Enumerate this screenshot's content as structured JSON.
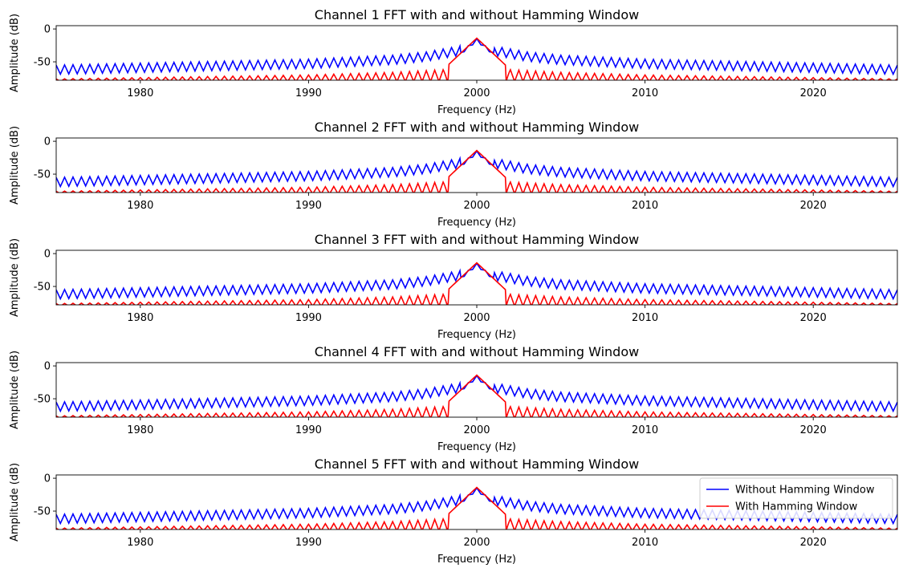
{
  "chart_data": [
    {
      "type": "line",
      "title": "Channel 1 FFT with and without Hamming Window",
      "xlabel": "Frequency (Hz)",
      "ylabel": "Amplitude (dB)",
      "xlim": [
        1975,
        2025
      ],
      "ylim": [
        -78,
        5
      ],
      "xticks": [
        1980,
        1990,
        2000,
        2010,
        2020
      ],
      "yticks": [
        0,
        -50
      ],
      "grid": false,
      "legend": null,
      "series": [
        {
          "name": "Without Hamming Window",
          "color": "#0000ff",
          "x": [
            1975,
            1980,
            1985,
            1990,
            1995,
            1997,
            1999,
            2000,
            2001,
            2003,
            2005,
            2010,
            2015,
            2020,
            2025
          ],
          "y": [
            -62,
            -59,
            -56,
            -53,
            -47,
            -42,
            -33,
            -12,
            -33,
            -42,
            -47,
            -53,
            -56,
            -59,
            -62
          ]
        },
        {
          "name": "With Hamming Window",
          "color": "#ff0000",
          "x": [
            1975,
            1980,
            1985,
            1990,
            1995,
            1998,
            1999,
            2000,
            2001,
            2002,
            2005,
            2010,
            2015,
            2020,
            2025
          ],
          "y": [
            -76,
            -74,
            -72,
            -70,
            -66,
            -62,
            -38,
            -14,
            -38,
            -62,
            -66,
            -70,
            -72,
            -74,
            -76
          ]
        }
      ]
    },
    {
      "type": "line",
      "title": "Channel 2 FFT with and without Hamming Window",
      "xlabel": "Frequency (Hz)",
      "ylabel": "Amplitude (dB)",
      "xlim": [
        1975,
        2025
      ],
      "ylim": [
        -78,
        5
      ],
      "xticks": [
        1980,
        1990,
        2000,
        2010,
        2020
      ],
      "yticks": [
        0,
        -50
      ],
      "grid": false,
      "legend": null,
      "series": [
        {
          "name": "Without Hamming Window",
          "color": "#0000ff",
          "x": [
            1975,
            1980,
            1985,
            1990,
            1995,
            1997,
            1999,
            2000,
            2001,
            2003,
            2005,
            2010,
            2015,
            2020,
            2025
          ],
          "y": [
            -62,
            -59,
            -56,
            -53,
            -47,
            -42,
            -33,
            -12,
            -33,
            -42,
            -47,
            -53,
            -56,
            -59,
            -62
          ]
        },
        {
          "name": "With Hamming Window",
          "color": "#ff0000",
          "x": [
            1975,
            1980,
            1985,
            1990,
            1995,
            1998,
            1999,
            2000,
            2001,
            2002,
            2005,
            2010,
            2015,
            2020,
            2025
          ],
          "y": [
            -76,
            -74,
            -72,
            -70,
            -66,
            -62,
            -38,
            -14,
            -38,
            -62,
            -66,
            -70,
            -72,
            -74,
            -76
          ]
        }
      ]
    },
    {
      "type": "line",
      "title": "Channel 3 FFT with and without Hamming Window",
      "xlabel": "Frequency (Hz)",
      "ylabel": "Amplitude (dB)",
      "xlim": [
        1975,
        2025
      ],
      "ylim": [
        -78,
        5
      ],
      "xticks": [
        1980,
        1990,
        2000,
        2010,
        2020
      ],
      "yticks": [
        0,
        -50
      ],
      "grid": false,
      "legend": null,
      "series": [
        {
          "name": "Without Hamming Window",
          "color": "#0000ff",
          "x": [
            1975,
            1980,
            1985,
            1990,
            1995,
            1997,
            1999,
            2000,
            2001,
            2003,
            2005,
            2010,
            2015,
            2020,
            2025
          ],
          "y": [
            -62,
            -59,
            -56,
            -53,
            -47,
            -42,
            -33,
            -12,
            -33,
            -42,
            -47,
            -53,
            -56,
            -59,
            -62
          ]
        },
        {
          "name": "With Hamming Window",
          "color": "#ff0000",
          "x": [
            1975,
            1980,
            1985,
            1990,
            1995,
            1998,
            1999,
            2000,
            2001,
            2002,
            2005,
            2010,
            2015,
            2020,
            2025
          ],
          "y": [
            -76,
            -74,
            -72,
            -70,
            -66,
            -62,
            -38,
            -14,
            -38,
            -62,
            -66,
            -70,
            -72,
            -74,
            -76
          ]
        }
      ]
    },
    {
      "type": "line",
      "title": "Channel 4 FFT with and without Hamming Window",
      "xlabel": "Frequency (Hz)",
      "ylabel": "Amplitude (dB)",
      "xlim": [
        1975,
        2025
      ],
      "ylim": [
        -78,
        5
      ],
      "xticks": [
        1980,
        1990,
        2000,
        2010,
        2020
      ],
      "yticks": [
        0,
        -50
      ],
      "grid": false,
      "legend": null,
      "series": [
        {
          "name": "Without Hamming Window",
          "color": "#0000ff",
          "x": [
            1975,
            1980,
            1985,
            1990,
            1995,
            1997,
            1999,
            2000,
            2001,
            2003,
            2005,
            2010,
            2015,
            2020,
            2025
          ],
          "y": [
            -62,
            -59,
            -56,
            -53,
            -47,
            -42,
            -33,
            -12,
            -33,
            -42,
            -47,
            -53,
            -56,
            -59,
            -62
          ]
        },
        {
          "name": "With Hamming Window",
          "color": "#ff0000",
          "x": [
            1975,
            1980,
            1985,
            1990,
            1995,
            1998,
            1999,
            2000,
            2001,
            2002,
            2005,
            2010,
            2015,
            2020,
            2025
          ],
          "y": [
            -76,
            -74,
            -72,
            -70,
            -66,
            -62,
            -38,
            -14,
            -38,
            -62,
            -66,
            -70,
            -72,
            -74,
            -76
          ]
        }
      ]
    },
    {
      "type": "line",
      "title": "Channel 5 FFT with and without Hamming Window",
      "xlabel": "Frequency (Hz)",
      "ylabel": "Amplitude (dB)",
      "xlim": [
        1975,
        2025
      ],
      "ylim": [
        -78,
        5
      ],
      "xticks": [
        1980,
        1990,
        2000,
        2010,
        2020
      ],
      "yticks": [
        0,
        -50
      ],
      "grid": false,
      "legend": "upper-right",
      "series": [
        {
          "name": "Without Hamming Window",
          "color": "#0000ff",
          "x": [
            1975,
            1980,
            1985,
            1990,
            1995,
            1997,
            1999,
            2000,
            2001,
            2003,
            2005,
            2010,
            2015,
            2020,
            2025
          ],
          "y": [
            -62,
            -59,
            -56,
            -53,
            -47,
            -42,
            -33,
            -12,
            -33,
            -42,
            -47,
            -53,
            -56,
            -59,
            -62
          ]
        },
        {
          "name": "With Hamming Window",
          "color": "#ff0000",
          "x": [
            1975,
            1980,
            1985,
            1990,
            1995,
            1998,
            1999,
            2000,
            2001,
            2002,
            2005,
            2010,
            2015,
            2020,
            2025
          ],
          "y": [
            -76,
            -74,
            -72,
            -70,
            -66,
            -62,
            -38,
            -14,
            -38,
            -62,
            -66,
            -70,
            -72,
            -74,
            -76
          ]
        }
      ]
    }
  ]
}
